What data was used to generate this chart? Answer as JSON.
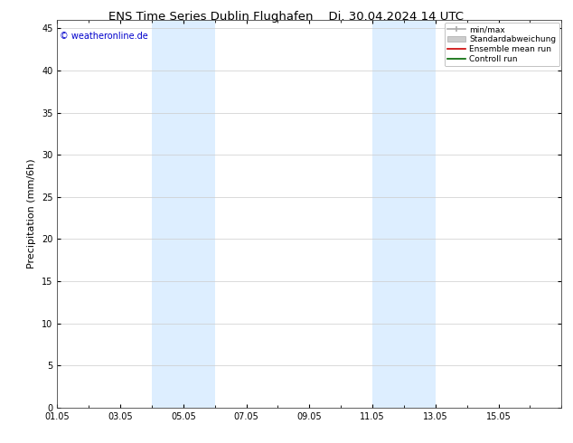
{
  "title_left": "ENS Time Series Dublin Flughafen",
  "title_right": "Di. 30.04.2024 14 UTC",
  "ylabel": "Precipitation (mm/6h)",
  "ylim": [
    0,
    46
  ],
  "yticks": [
    0,
    5,
    10,
    15,
    20,
    25,
    30,
    35,
    40,
    45
  ],
  "xstart": 0,
  "xend": 16,
  "xtick_positions": [
    0,
    2,
    4,
    6,
    8,
    10,
    12,
    14
  ],
  "xtick_labels": [
    "01.05",
    "03.05",
    "05.05",
    "07.05",
    "09.05",
    "11.05",
    "13.05",
    "15.05"
  ],
  "shaded_bands": [
    {
      "xmin": 3.0,
      "xmax": 5.0
    },
    {
      "xmin": 10.0,
      "xmax": 12.0
    }
  ],
  "band_color": "#ddeeff",
  "background_color": "#ffffff",
  "watermark": "© weatheronline.de",
  "watermark_color": "#0000cc",
  "watermark_fontsize": 7,
  "legend_entries": [
    {
      "label": "min/max",
      "color": "#aaaaaa",
      "lw": 1.2
    },
    {
      "label": "Standardabweichung",
      "color": "#bbbbbb",
      "lw": 4
    },
    {
      "label": "Ensemble mean run",
      "color": "#cc0000",
      "lw": 1.2
    },
    {
      "label": "Controll run",
      "color": "#006600",
      "lw": 1.2
    }
  ],
  "title_fontsize": 9.5,
  "axis_label_fontsize": 8,
  "tick_fontsize": 7,
  "legend_fontsize": 6.5
}
